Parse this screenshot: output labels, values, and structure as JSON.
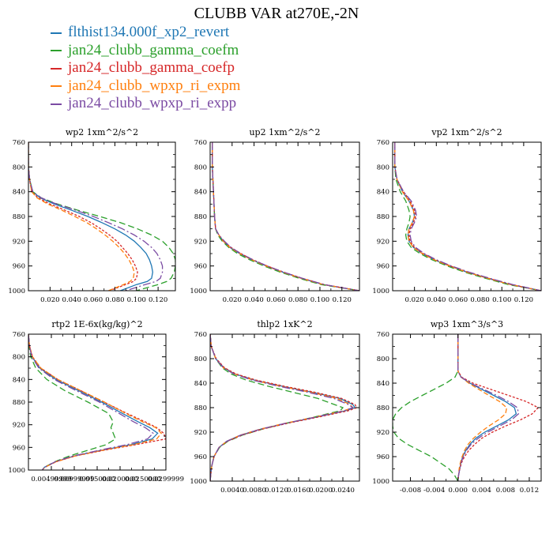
{
  "figure": {
    "title": "CLUBB VAR at270E,-2N",
    "legend": [
      {
        "label": "flthist134.000f_xp2_revert",
        "color": "#1f77b4"
      },
      {
        "label": "jan24_clubb_gamma_coefm",
        "color": "#2ca02c"
      },
      {
        "label": "jan24_clubb_gamma_coefp",
        "color": "#d62728"
      },
      {
        "label": "jan24_clubb_wpxp_ri_expm",
        "color": "#ff7f0e"
      },
      {
        "label": "jan24_clubb_wpxp_ri_expp",
        "color": "#7b4ba3"
      }
    ]
  },
  "chart_data": [
    {
      "type": "line",
      "title": "wp2  1xm^2/s^2",
      "xlim": [
        0,
        0.136
      ],
      "ylim": [
        760,
        1000
      ],
      "y_inverted": true,
      "yticks": [
        "760",
        "800",
        "840",
        "880",
        "920",
        "960",
        "1000"
      ],
      "xticks": [
        0.02,
        0.04,
        0.06,
        0.08,
        0.1,
        0.12
      ],
      "xtick_labels": [
        "0.020",
        "0.040",
        "0.060",
        "0.080",
        "0.100",
        "0.120"
      ],
      "y": [
        760,
        800,
        820,
        840,
        850,
        860,
        870,
        880,
        890,
        900,
        910,
        920,
        930,
        940,
        950,
        960,
        970,
        980,
        985,
        990,
        1000
      ],
      "series": [
        {
          "color": "#1f77b4",
          "x": [
            0,
            0,
            0.001,
            0.004,
            0.011,
            0.024,
            0.04,
            0.055,
            0.068,
            0.08,
            0.09,
            0.098,
            0.104,
            0.109,
            0.112,
            0.114,
            0.115,
            0.114,
            0.11,
            0.1,
            0.085
          ]
        },
        {
          "color": "#2ca02c",
          "x": [
            0,
            0,
            0.001,
            0.004,
            0.012,
            0.027,
            0.046,
            0.066,
            0.085,
            0.101,
            0.114,
            0.124,
            0.13,
            0.134,
            0.136,
            0.136,
            0.135,
            0.132,
            0.128,
            0.12,
            0.1
          ]
        },
        {
          "color": "#d62728",
          "x": [
            0,
            0,
            0.001,
            0.003,
            0.009,
            0.02,
            0.034,
            0.047,
            0.058,
            0.067,
            0.075,
            0.082,
            0.087,
            0.092,
            0.096,
            0.099,
            0.101,
            0.1,
            0.097,
            0.09,
            0.075
          ]
        },
        {
          "color": "#ff7f0e",
          "x": [
            0,
            0,
            0.001,
            0.003,
            0.008,
            0.018,
            0.031,
            0.043,
            0.054,
            0.063,
            0.071,
            0.078,
            0.084,
            0.089,
            0.093,
            0.096,
            0.098,
            0.097,
            0.094,
            0.088,
            0.074
          ]
        },
        {
          "color": "#7b4ba3",
          "x": [
            0,
            0,
            0.001,
            0.004,
            0.012,
            0.026,
            0.044,
            0.06,
            0.074,
            0.087,
            0.098,
            0.107,
            0.114,
            0.119,
            0.122,
            0.124,
            0.124,
            0.122,
            0.118,
            0.108,
            0.09
          ]
        }
      ]
    },
    {
      "type": "line",
      "title": "up2  1xm^2/s^2",
      "xlim": [
        0,
        0.136
      ],
      "ylim": [
        760,
        1000
      ],
      "y_inverted": true,
      "yticks": [
        "760",
        "800",
        "840",
        "880",
        "920",
        "960",
        "1000"
      ],
      "xticks": [
        0.02,
        0.04,
        0.06,
        0.08,
        0.1,
        0.12
      ],
      "xtick_labels": [
        "0.020",
        "0.040",
        "0.060",
        "0.080",
        "0.100",
        "0.120"
      ],
      "y": [
        760,
        800,
        840,
        880,
        900,
        910,
        920,
        930,
        940,
        950,
        960,
        970,
        980,
        990,
        1000
      ],
      "series": [
        {
          "color": "#1f77b4",
          "x": [
            0.002,
            0.002,
            0.003,
            0.004,
            0.005,
            0.008,
            0.012,
            0.018,
            0.027,
            0.038,
            0.051,
            0.066,
            0.083,
            0.103,
            0.136
          ]
        },
        {
          "color": "#2ca02c",
          "x": [
            0.002,
            0.002,
            0.003,
            0.004,
            0.005,
            0.007,
            0.011,
            0.017,
            0.025,
            0.036,
            0.049,
            0.064,
            0.081,
            0.101,
            0.136
          ]
        },
        {
          "color": "#d62728",
          "x": [
            0.002,
            0.002,
            0.003,
            0.004,
            0.005,
            0.008,
            0.012,
            0.019,
            0.028,
            0.039,
            0.052,
            0.067,
            0.084,
            0.104,
            0.136
          ]
        },
        {
          "color": "#ff7f0e",
          "x": [
            0.002,
            0.002,
            0.003,
            0.004,
            0.005,
            0.008,
            0.012,
            0.018,
            0.027,
            0.038,
            0.051,
            0.066,
            0.083,
            0.103,
            0.136
          ]
        },
        {
          "color": "#7b4ba3",
          "x": [
            0.002,
            0.002,
            0.003,
            0.004,
            0.005,
            0.008,
            0.013,
            0.019,
            0.028,
            0.039,
            0.052,
            0.067,
            0.084,
            0.104,
            0.136
          ]
        }
      ]
    },
    {
      "type": "line",
      "title": "vp2  1xm^2/s^2",
      "xlim": [
        0,
        0.136
      ],
      "ylim": [
        760,
        1000
      ],
      "y_inverted": true,
      "yticks": [
        "760",
        "800",
        "840",
        "880",
        "920",
        "960",
        "1000"
      ],
      "xticks": [
        0.02,
        0.04,
        0.06,
        0.08,
        0.1,
        0.12
      ],
      "xtick_labels": [
        "0.020",
        "0.040",
        "0.060",
        "0.080",
        "0.100",
        "0.120"
      ],
      "y": [
        760,
        800,
        820,
        840,
        855,
        870,
        880,
        890,
        900,
        910,
        920,
        930,
        940,
        950,
        960,
        970,
        980,
        990,
        1000
      ],
      "series": [
        {
          "color": "#1f77b4",
          "x": [
            0.002,
            0.002,
            0.004,
            0.009,
            0.015,
            0.019,
            0.02,
            0.018,
            0.015,
            0.014,
            0.015,
            0.019,
            0.027,
            0.038,
            0.052,
            0.068,
            0.087,
            0.108,
            0.136
          ]
        },
        {
          "color": "#2ca02c",
          "x": [
            0.002,
            0.002,
            0.003,
            0.007,
            0.012,
            0.015,
            0.016,
            0.015,
            0.013,
            0.012,
            0.013,
            0.017,
            0.025,
            0.036,
            0.05,
            0.066,
            0.085,
            0.106,
            0.136
          ]
        },
        {
          "color": "#d62728",
          "x": [
            0.002,
            0.002,
            0.004,
            0.01,
            0.016,
            0.02,
            0.021,
            0.019,
            0.016,
            0.015,
            0.016,
            0.02,
            0.028,
            0.039,
            0.053,
            0.069,
            0.088,
            0.109,
            0.136
          ]
        },
        {
          "color": "#ff7f0e",
          "x": [
            0.002,
            0.002,
            0.004,
            0.009,
            0.015,
            0.019,
            0.02,
            0.018,
            0.015,
            0.014,
            0.015,
            0.019,
            0.027,
            0.038,
            0.052,
            0.068,
            0.087,
            0.108,
            0.136
          ]
        },
        {
          "color": "#7b4ba3",
          "x": [
            0.002,
            0.002,
            0.004,
            0.01,
            0.017,
            0.021,
            0.022,
            0.02,
            0.017,
            0.016,
            0.017,
            0.021,
            0.029,
            0.04,
            0.054,
            0.07,
            0.089,
            0.11,
            0.136
          ]
        }
      ]
    },
    {
      "type": "line",
      "title": "rtp2  1E-6x(kg/kg)^2",
      "xlim": [
        0,
        0.03
      ],
      "ylim": [
        760,
        1000
      ],
      "y_inverted": true,
      "yticks": [
        "760",
        "800",
        "840",
        "880",
        "920",
        "960",
        "1000"
      ],
      "xticks": [
        0.005,
        0.01,
        0.015,
        0.02,
        0.025,
        0.03
      ],
      "xtick_labels": [
        "0.00499999",
        "0.00999999",
        "0.0150000",
        "0.0200000",
        "0.0250000",
        "0.0299999"
      ],
      "y": [
        760,
        780,
        800,
        820,
        840,
        860,
        880,
        900,
        915,
        925,
        935,
        945,
        955,
        965,
        975,
        985,
        995,
        1000
      ],
      "series": [
        {
          "color": "#1f77b4",
          "x": [
            0,
            0.0002,
            0.0008,
            0.0025,
            0.006,
            0.011,
            0.016,
            0.0205,
            0.024,
            0.0265,
            0.0282,
            0.027,
            0.0225,
            0.016,
            0.01,
            0.006,
            0.0035,
            0.003
          ]
        },
        {
          "color": "#2ca02c",
          "x": [
            0,
            0.0001,
            0.0005,
            0.0016,
            0.004,
            0.008,
            0.013,
            0.0175,
            0.0185,
            0.018,
            0.0185,
            0.019,
            0.017,
            0.013,
            0.009,
            0.0058,
            0.0035,
            0.003
          ]
        },
        {
          "color": "#d62728",
          "x": [
            0,
            0.0002,
            0.0009,
            0.0027,
            0.0064,
            0.0115,
            0.0165,
            0.0215,
            0.0255,
            0.028,
            0.0295,
            0.03,
            0.0235,
            0.0165,
            0.0103,
            0.0061,
            0.0036,
            0.003
          ]
        },
        {
          "color": "#ff7f0e",
          "x": [
            0,
            0.0002,
            0.0009,
            0.0027,
            0.0064,
            0.0115,
            0.0166,
            0.0212,
            0.025,
            0.0278,
            0.029,
            0.028,
            0.023,
            0.0162,
            0.0102,
            0.0061,
            0.0036,
            0.003
          ]
        },
        {
          "color": "#7b4ba3",
          "x": [
            0,
            0.0002,
            0.0007,
            0.0023,
            0.0056,
            0.0105,
            0.0155,
            0.0198,
            0.023,
            0.0255,
            0.0272,
            0.026,
            0.0215,
            0.0155,
            0.0098,
            0.0059,
            0.0035,
            0.003
          ]
        }
      ]
    },
    {
      "type": "line",
      "title": "thlp2  1xK^2",
      "xlim": [
        0,
        0.027
      ],
      "ylim": [
        760,
        1000
      ],
      "y_inverted": true,
      "yticks": [
        "760",
        "800",
        "840",
        "880",
        "920",
        "960",
        "1000"
      ],
      "xticks": [
        0.004,
        0.008,
        0.012,
        0.016,
        0.02,
        0.024
      ],
      "xtick_labels": [
        "0.0040",
        "0.0080",
        "0.0120",
        "0.0160",
        "0.0200",
        "0.0240"
      ],
      "y": [
        760,
        780,
        800,
        815,
        825,
        835,
        845,
        855,
        865,
        875,
        880,
        885,
        895,
        905,
        915,
        925,
        935,
        945,
        960,
        975,
        990,
        1000
      ],
      "series": [
        {
          "color": "#1f77b4",
          "x": [
            0,
            0.0002,
            0.001,
            0.0025,
            0.0045,
            0.008,
            0.013,
            0.0185,
            0.0235,
            0.0258,
            0.0262,
            0.0245,
            0.0195,
            0.014,
            0.0092,
            0.0055,
            0.003,
            0.0016,
            0.0007,
            0.0003,
            0.0001,
            0
          ]
        },
        {
          "color": "#2ca02c",
          "x": [
            0,
            0.0002,
            0.001,
            0.0022,
            0.0038,
            0.0065,
            0.0105,
            0.015,
            0.0195,
            0.0225,
            0.024,
            0.0235,
            0.019,
            0.014,
            0.0095,
            0.0058,
            0.0032,
            0.0017,
            0.0007,
            0.0003,
            0.0001,
            0
          ]
        },
        {
          "color": "#d62728",
          "x": [
            0,
            0.0002,
            0.0011,
            0.0026,
            0.0047,
            0.0083,
            0.0134,
            0.019,
            0.0238,
            0.0262,
            0.0265,
            0.025,
            0.0198,
            0.0143,
            0.0095,
            0.0057,
            0.0031,
            0.0016,
            0.0007,
            0.0003,
            0.0001,
            0
          ]
        },
        {
          "color": "#ff7f0e",
          "x": [
            0,
            0.0002,
            0.001,
            0.0024,
            0.0044,
            0.0078,
            0.0127,
            0.0182,
            0.023,
            0.0253,
            0.0258,
            0.0242,
            0.0192,
            0.0138,
            0.0091,
            0.0054,
            0.003,
            0.0016,
            0.0007,
            0.0003,
            0.0001,
            0
          ]
        },
        {
          "color": "#7b4ba3",
          "x": [
            0,
            0.0002,
            0.001,
            0.0024,
            0.0043,
            0.0076,
            0.0124,
            0.0177,
            0.0224,
            0.025,
            0.0258,
            0.0243,
            0.0193,
            0.0139,
            0.0092,
            0.0055,
            0.003,
            0.0016,
            0.0007,
            0.0003,
            0.0001,
            0
          ]
        }
      ]
    },
    {
      "type": "line",
      "title": "wp3  1xm^3/s^3",
      "xlim": [
        -0.011,
        0.014
      ],
      "ylim": [
        760,
        1000
      ],
      "y_inverted": true,
      "yticks": [
        "760",
        "800",
        "840",
        "880",
        "920",
        "960",
        "1000"
      ],
      "xticks": [
        -0.008,
        -0.004,
        0,
        0.004,
        0.008,
        0.012
      ],
      "xtick_labels": [
        "-0.008",
        "-0.004",
        "0.000",
        "0.004",
        "0.008",
        "0.012"
      ],
      "y": [
        760,
        800,
        820,
        830,
        840,
        850,
        860,
        870,
        880,
        890,
        900,
        910,
        920,
        930,
        940,
        950,
        960,
        970,
        980,
        990,
        1000
      ],
      "series": [
        {
          "color": "#1f77b4",
          "x": [
            0,
            0,
            0,
            0.0005,
            0.002,
            0.004,
            0.006,
            0.008,
            0.0095,
            0.0098,
            0.0085,
            0.0065,
            0.0045,
            0.003,
            0.002,
            0.0013,
            0.0008,
            0.0005,
            0.0003,
            0.0001,
            0
          ]
        },
        {
          "color": "#2ca02c",
          "x": [
            0,
            0,
            0,
            -0.0005,
            -0.002,
            -0.004,
            -0.006,
            -0.008,
            -0.0095,
            -0.0105,
            -0.011,
            -0.011,
            -0.0108,
            -0.01,
            -0.0085,
            -0.0065,
            -0.0045,
            -0.003,
            -0.0015,
            -0.0006,
            0
          ]
        },
        {
          "color": "#d62728",
          "x": [
            0,
            0,
            0,
            0.0006,
            0.0025,
            0.0055,
            0.0085,
            0.0115,
            0.0135,
            0.0125,
            0.0105,
            0.008,
            0.0058,
            0.004,
            0.0028,
            0.0018,
            0.0011,
            0.0006,
            0.0003,
            0.0001,
            0
          ]
        },
        {
          "color": "#ff7f0e",
          "x": [
            0,
            0,
            0,
            0.0005,
            0.0018,
            0.0035,
            0.0052,
            0.007,
            0.0082,
            0.008,
            0.0068,
            0.0052,
            0.0038,
            0.0026,
            0.0017,
            0.0011,
            0.0007,
            0.0004,
            0.0002,
            0.0001,
            0
          ]
        },
        {
          "color": "#7b4ba3",
          "x": [
            0,
            0,
            0,
            0.0005,
            0.0021,
            0.0043,
            0.0065,
            0.0085,
            0.01,
            0.0102,
            0.009,
            0.007,
            0.005,
            0.0034,
            0.0022,
            0.0014,
            0.0009,
            0.0005,
            0.0003,
            0.0001,
            0
          ]
        }
      ]
    }
  ]
}
